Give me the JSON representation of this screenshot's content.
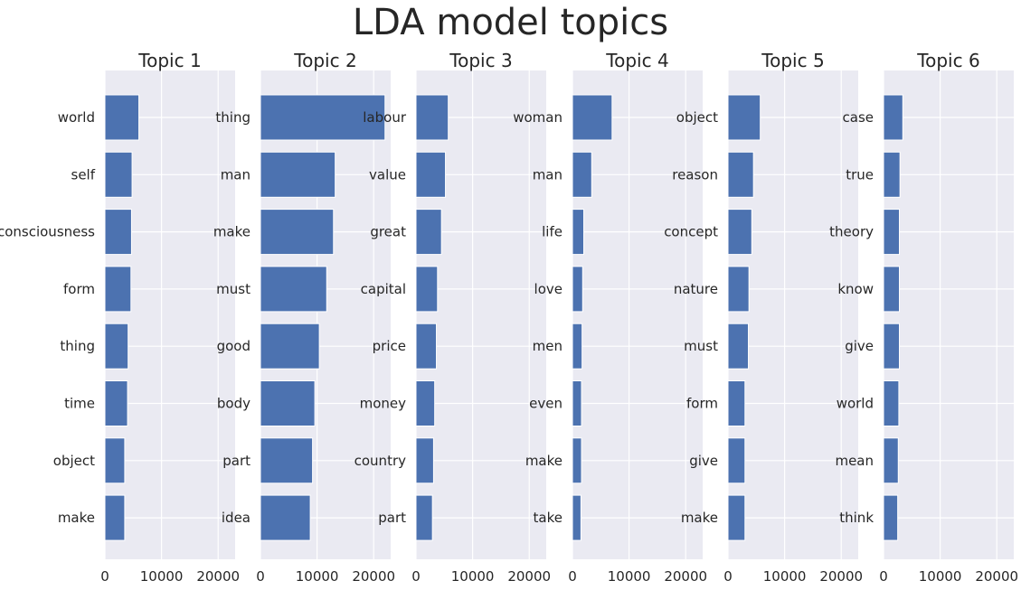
{
  "title": "LDA model topics",
  "chart_data": {
    "type": "bar",
    "orientation": "horizontal",
    "grid": true,
    "colors": {
      "bar": "#4c72b0",
      "background": "#eaeaf2",
      "grid": "#ffffff"
    },
    "xlim": [
      0,
      23000
    ],
    "xticks": [
      0,
      10000,
      20000
    ],
    "panels": [
      {
        "title": "Topic 1",
        "categories": [
          "world",
          "self",
          "consciousness",
          "form",
          "thing",
          "time",
          "object",
          "make"
        ],
        "values": [
          6000,
          4800,
          4700,
          4600,
          4100,
          4000,
          3500,
          3500
        ]
      },
      {
        "title": "Topic 2",
        "categories": [
          "thing",
          "man",
          "make",
          "must",
          "good",
          "body",
          "part",
          "idea"
        ],
        "values": [
          22000,
          13200,
          12900,
          11700,
          10400,
          9600,
          9200,
          8800
        ]
      },
      {
        "title": "Topic 3",
        "categories": [
          "labour",
          "value",
          "great",
          "capital",
          "price",
          "money",
          "country",
          "part"
        ],
        "values": [
          5700,
          5200,
          4500,
          3800,
          3600,
          3300,
          3100,
          2900
        ]
      },
      {
        "title": "Topic 4",
        "categories": [
          "woman",
          "man",
          "life",
          "love",
          "men",
          "even",
          "make",
          "take"
        ],
        "values": [
          7000,
          3400,
          2000,
          1800,
          1700,
          1600,
          1600,
          1500
        ]
      },
      {
        "title": "Topic 5",
        "categories": [
          "object",
          "reason",
          "concept",
          "nature",
          "must",
          "form",
          "give",
          "make"
        ],
        "values": [
          5700,
          4500,
          4200,
          3700,
          3600,
          3000,
          3000,
          3000
        ]
      },
      {
        "title": "Topic 6",
        "categories": [
          "case",
          "true",
          "theory",
          "know",
          "give",
          "world",
          "mean",
          "think"
        ],
        "values": [
          3400,
          2900,
          2800,
          2800,
          2800,
          2700,
          2600,
          2500
        ]
      }
    ]
  }
}
